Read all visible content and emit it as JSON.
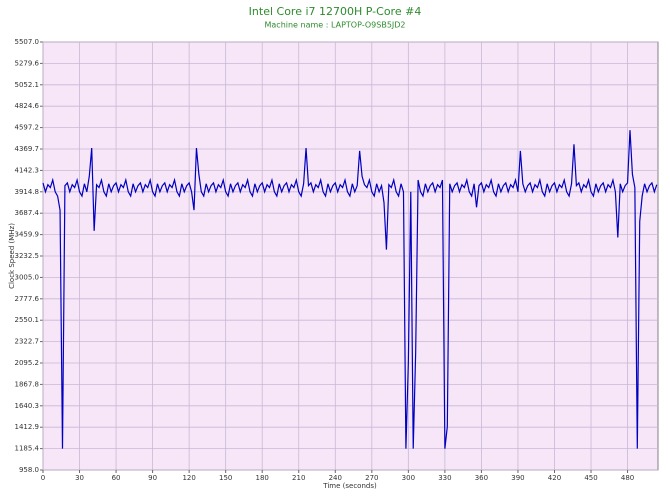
{
  "chart_data": {
    "type": "line",
    "title": "Intel Core i7 12700H P-Core #4",
    "subtitle": "Machine name : LAPTOP-O9SB5JD2",
    "xlabel": "Time (seconds)",
    "ylabel": "Clock Speed (MHz)",
    "color": "#0000c0",
    "grid": true,
    "xlim": [
      0,
      505
    ],
    "ylim": [
      958,
      5507
    ],
    "xticks": [
      0,
      30,
      60,
      90,
      120,
      150,
      180,
      210,
      240,
      270,
      300,
      330,
      360,
      390,
      420,
      450,
      480
    ],
    "yticks": [
      {
        "value": 958,
        "label": "958.0"
      },
      1185.4,
      1412.9,
      1640.3,
      1867.8,
      2095.2,
      2322.7,
      2550.1,
      2777.6,
      {
        "value": 3005,
        "label": "3005.0"
      },
      3232.5,
      3459.9,
      3687.4,
      3914.8,
      4142.3,
      4369.7,
      4597.2,
      4824.6,
      5052.1,
      5279.6,
      {
        "value": 5507,
        "label": "5507.0"
      }
    ],
    "x": [
      0,
      2,
      4,
      6,
      8,
      10,
      12,
      14,
      16,
      18,
      20,
      22,
      24,
      26,
      28,
      30,
      32,
      34,
      36,
      38,
      40,
      42,
      44,
      46,
      48,
      50,
      52,
      54,
      56,
      58,
      60,
      62,
      64,
      66,
      68,
      70,
      72,
      74,
      76,
      78,
      80,
      82,
      84,
      86,
      88,
      90,
      92,
      94,
      96,
      98,
      100,
      102,
      104,
      106,
      108,
      110,
      112,
      114,
      116,
      118,
      120,
      122,
      124,
      126,
      128,
      130,
      132,
      134,
      136,
      138,
      140,
      142,
      144,
      146,
      148,
      150,
      152,
      154,
      156,
      158,
      160,
      162,
      164,
      166,
      168,
      170,
      172,
      174,
      176,
      178,
      180,
      182,
      184,
      186,
      188,
      190,
      192,
      194,
      196,
      198,
      200,
      202,
      204,
      206,
      208,
      210,
      212,
      214,
      216,
      218,
      220,
      222,
      224,
      226,
      228,
      230,
      232,
      234,
      236,
      238,
      240,
      242,
      244,
      246,
      248,
      250,
      252,
      254,
      256,
      258,
      260,
      262,
      264,
      266,
      268,
      270,
      272,
      274,
      276,
      278,
      280,
      282,
      284,
      286,
      288,
      290,
      292,
      294,
      296,
      298,
      300,
      302,
      304,
      306,
      308,
      310,
      312,
      314,
      316,
      318,
      320,
      322,
      324,
      326,
      328,
      330,
      332,
      334,
      336,
      338,
      340,
      342,
      344,
      346,
      348,
      350,
      352,
      354,
      356,
      358,
      360,
      362,
      364,
      366,
      368,
      370,
      372,
      374,
      376,
      378,
      380,
      382,
      384,
      386,
      388,
      390,
      392,
      394,
      396,
      398,
      400,
      402,
      404,
      406,
      408,
      410,
      412,
      414,
      416,
      418,
      420,
      422,
      424,
      426,
      428,
      430,
      432,
      434,
      436,
      438,
      440,
      442,
      444,
      446,
      448,
      450,
      452,
      454,
      456,
      458,
      460,
      462,
      464,
      466,
      468,
      470,
      472,
      474,
      476,
      478,
      480,
      482,
      484,
      486,
      488,
      490,
      492,
      494,
      496,
      498,
      500,
      502,
      504
    ],
    "values": [
      4010,
      3915,
      3990,
      3960,
      4040,
      3915,
      3870,
      3720,
      1185,
      3980,
      4010,
      3915,
      3990,
      3960,
      4040,
      3915,
      3870,
      4000,
      3915,
      4080,
      4380,
      3500,
      3990,
      3960,
      4040,
      3915,
      3870,
      4000,
      3915,
      3980,
      4010,
      3915,
      3990,
      3960,
      4040,
      3915,
      3870,
      4000,
      3915,
      3980,
      4010,
      3915,
      3990,
      3960,
      4040,
      3915,
      3870,
      4000,
      3915,
      3980,
      4010,
      3915,
      3990,
      3960,
      4040,
      3915,
      3870,
      4000,
      3915,
      3980,
      4010,
      3915,
      3720,
      4380,
      4100,
      3915,
      3870,
      4000,
      3915,
      3980,
      4010,
      3915,
      3990,
      3960,
      4040,
      3915,
      3870,
      4000,
      3915,
      3980,
      4010,
      3915,
      3990,
      3960,
      4040,
      3915,
      3870,
      4000,
      3915,
      3980,
      4010,
      3915,
      3990,
      3960,
      4040,
      3915,
      3870,
      4000,
      3915,
      3980,
      4010,
      3915,
      3990,
      3960,
      4040,
      3915,
      3870,
      4000,
      4380,
      3980,
      4010,
      3915,
      3990,
      3960,
      4040,
      3915,
      3870,
      4000,
      3915,
      3980,
      4010,
      3915,
      3990,
      3960,
      4040,
      3915,
      3870,
      4000,
      3915,
      3980,
      4350,
      4080,
      3990,
      3960,
      4040,
      3915,
      3870,
      4000,
      3915,
      3980,
      3800,
      3300,
      3990,
      3960,
      4040,
      3915,
      3870,
      4000,
      3915,
      1185,
      2100,
      3915,
      1185,
      2200,
      4040,
      3915,
      3870,
      4000,
      3915,
      3980,
      4010,
      3915,
      3990,
      3960,
      4040,
      1185,
      1420,
      4000,
      3915,
      3980,
      4010,
      3915,
      3990,
      3960,
      4040,
      3915,
      3870,
      4000,
      3750,
      3980,
      4010,
      3915,
      3990,
      3960,
      4040,
      3915,
      3870,
      4000,
      3915,
      3980,
      4010,
      3915,
      3990,
      3960,
      4040,
      3915,
      4350,
      4000,
      3915,
      3980,
      4010,
      3915,
      3990,
      3960,
      4040,
      3915,
      3870,
      4000,
      3915,
      3980,
      4010,
      3915,
      3990,
      3960,
      4040,
      3915,
      3870,
      4000,
      4420,
      3980,
      4010,
      3915,
      3990,
      3960,
      4040,
      3915,
      3870,
      4000,
      3915,
      3980,
      4010,
      3915,
      3990,
      3960,
      4040,
      3915,
      3430,
      4000,
      3915,
      3980,
      4010,
      4570,
      4100,
      3960,
      1185,
      3600,
      3870,
      4000,
      3915,
      3980,
      4010,
      3915,
      3990
    ]
  }
}
